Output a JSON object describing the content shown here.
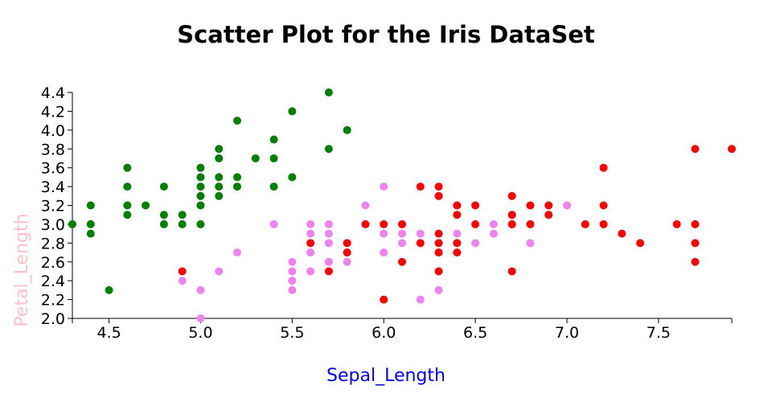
{
  "chart_data": {
    "type": "scatter",
    "title": "Scatter Plot for the Iris DataSet",
    "xlabel": "Sepal_Length",
    "ylabel": "Petal_Length",
    "xlim": [
      4.3,
      7.9
    ],
    "ylim": [
      2.0,
      4.4
    ],
    "x_ticks": [
      "4.5",
      "5.0",
      "5.5",
      "6.0",
      "6.5",
      "7.0",
      "7.5"
    ],
    "y_ticks": [
      "2.0",
      "2.2",
      "2.4",
      "2.6",
      "2.8",
      "3.0",
      "3.2",
      "3.4",
      "3.6",
      "3.8",
      "4.0",
      "4.2",
      "4.4"
    ],
    "grid": false,
    "legend": "none",
    "colors": {
      "xlabel": "#0000ff",
      "ylabel": "#ffc0cb"
    },
    "series": [
      {
        "color": "#008000",
        "points": [
          [
            4.3,
            3.0
          ],
          [
            4.4,
            2.9
          ],
          [
            4.4,
            3.0
          ],
          [
            4.4,
            3.2
          ],
          [
            4.5,
            2.3
          ],
          [
            4.6,
            3.1
          ],
          [
            4.6,
            3.2
          ],
          [
            4.6,
            3.4
          ],
          [
            4.6,
            3.6
          ],
          [
            4.7,
            3.2
          ],
          [
            4.8,
            3.0
          ],
          [
            4.8,
            3.1
          ],
          [
            4.8,
            3.4
          ],
          [
            4.9,
            3.0
          ],
          [
            4.9,
            3.1
          ],
          [
            5.0,
            3.0
          ],
          [
            5.0,
            3.2
          ],
          [
            5.0,
            3.3
          ],
          [
            5.0,
            3.4
          ],
          [
            5.0,
            3.5
          ],
          [
            5.0,
            3.6
          ],
          [
            5.1,
            3.3
          ],
          [
            5.1,
            3.4
          ],
          [
            5.1,
            3.5
          ],
          [
            5.1,
            3.7
          ],
          [
            5.1,
            3.8
          ],
          [
            5.2,
            3.4
          ],
          [
            5.2,
            3.5
          ],
          [
            5.2,
            4.1
          ],
          [
            5.3,
            3.7
          ],
          [
            5.4,
            3.4
          ],
          [
            5.4,
            3.7
          ],
          [
            5.4,
            3.9
          ],
          [
            5.5,
            3.5
          ],
          [
            5.5,
            4.2
          ],
          [
            5.7,
            3.8
          ],
          [
            5.7,
            4.4
          ],
          [
            5.8,
            4.0
          ]
        ]
      },
      {
        "color": "#ee82ee",
        "points": [
          [
            4.9,
            2.4
          ],
          [
            5.0,
            2.0
          ],
          [
            5.0,
            2.3
          ],
          [
            5.1,
            2.5
          ],
          [
            5.2,
            2.7
          ],
          [
            5.4,
            3.0
          ],
          [
            5.5,
            2.3
          ],
          [
            5.5,
            2.4
          ],
          [
            5.5,
            2.5
          ],
          [
            5.5,
            2.6
          ],
          [
            5.6,
            2.5
          ],
          [
            5.6,
            2.7
          ],
          [
            5.6,
            2.9
          ],
          [
            5.6,
            3.0
          ],
          [
            5.7,
            2.6
          ],
          [
            5.7,
            2.8
          ],
          [
            5.7,
            2.9
          ],
          [
            5.7,
            3.0
          ],
          [
            5.8,
            2.6
          ],
          [
            5.8,
            2.7
          ],
          [
            5.9,
            3.2
          ],
          [
            6.0,
            2.7
          ],
          [
            6.0,
            2.9
          ],
          [
            6.0,
            3.4
          ],
          [
            6.1,
            2.8
          ],
          [
            6.1,
            2.9
          ],
          [
            6.1,
            3.0
          ],
          [
            6.2,
            2.2
          ],
          [
            6.2,
            2.9
          ],
          [
            6.3,
            2.3
          ],
          [
            6.3,
            2.5
          ],
          [
            6.3,
            3.3
          ],
          [
            6.4,
            2.9
          ],
          [
            6.4,
            3.2
          ],
          [
            6.5,
            2.8
          ],
          [
            6.6,
            2.9
          ],
          [
            6.6,
            3.0
          ],
          [
            6.7,
            3.0
          ],
          [
            6.7,
            3.1
          ],
          [
            6.8,
            2.8
          ],
          [
            6.9,
            3.1
          ],
          [
            7.0,
            3.2
          ]
        ]
      },
      {
        "color": "#ff0000",
        "points": [
          [
            4.9,
            2.5
          ],
          [
            5.6,
            2.8
          ],
          [
            5.7,
            2.5
          ],
          [
            5.8,
            2.7
          ],
          [
            5.8,
            2.8
          ],
          [
            5.9,
            3.0
          ],
          [
            6.0,
            2.2
          ],
          [
            6.0,
            3.0
          ],
          [
            6.1,
            2.6
          ],
          [
            6.1,
            3.0
          ],
          [
            6.2,
            2.8
          ],
          [
            6.2,
            3.4
          ],
          [
            6.3,
            2.5
          ],
          [
            6.3,
            2.7
          ],
          [
            6.3,
            2.8
          ],
          [
            6.3,
            2.9
          ],
          [
            6.3,
            3.3
          ],
          [
            6.3,
            3.4
          ],
          [
            6.4,
            2.7
          ],
          [
            6.4,
            2.8
          ],
          [
            6.4,
            3.1
          ],
          [
            6.4,
            3.2
          ],
          [
            6.5,
            3.0
          ],
          [
            6.5,
            3.2
          ],
          [
            6.7,
            2.5
          ],
          [
            6.7,
            3.0
          ],
          [
            6.7,
            3.1
          ],
          [
            6.7,
            3.3
          ],
          [
            6.8,
            3.0
          ],
          [
            6.8,
            3.2
          ],
          [
            6.9,
            3.1
          ],
          [
            6.9,
            3.2
          ],
          [
            7.1,
            3.0
          ],
          [
            7.2,
            3.0
          ],
          [
            7.2,
            3.2
          ],
          [
            7.2,
            3.6
          ],
          [
            7.3,
            2.9
          ],
          [
            7.4,
            2.8
          ],
          [
            7.6,
            3.0
          ],
          [
            7.7,
            2.6
          ],
          [
            7.7,
            2.8
          ],
          [
            7.7,
            3.0
          ],
          [
            7.7,
            3.8
          ],
          [
            7.9,
            3.8
          ]
        ]
      }
    ]
  }
}
